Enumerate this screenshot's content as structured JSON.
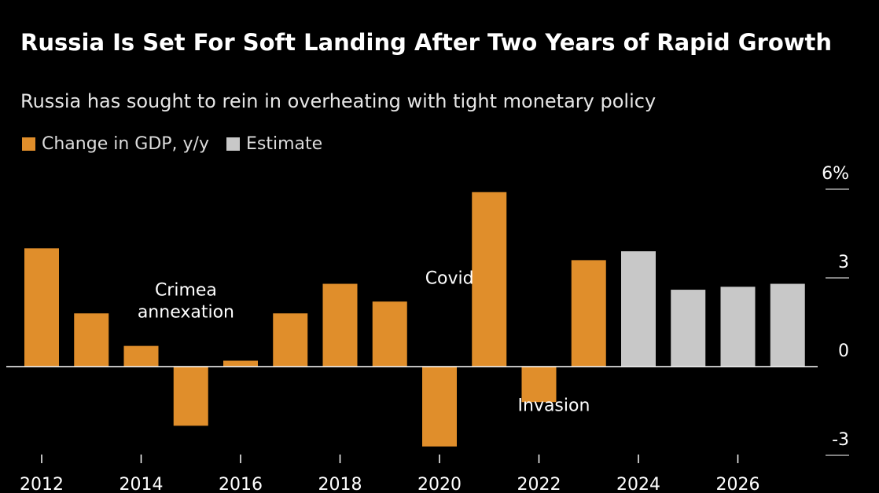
{
  "title": "Russia Is Set For Soft Landing After Two Years of Rapid Growth",
  "subtitle": "Russia has sought to rein in overheating with tight monetary policy",
  "colors": {
    "actual": "#e08e2b",
    "estimate": "#c8c8c8",
    "background": "#000000",
    "text": "#ffffff"
  },
  "legend": [
    {
      "label": "Change in GDP, y/y",
      "color": "#e08e2b"
    },
    {
      "label": "Estimate",
      "color": "#c8c8c8"
    }
  ],
  "chart_data": {
    "type": "bar",
    "title": "Russia Is Set For Soft Landing After Two Years of Rapid Growth",
    "subtitle": "Russia has sought to rein in overheating with tight monetary policy",
    "categories": [
      2012,
      2013,
      2014,
      2015,
      2016,
      2017,
      2018,
      2019,
      2020,
      2021,
      2022,
      2023,
      2024,
      2025,
      2026,
      2027
    ],
    "series": [
      {
        "name": "Change in GDP, y/y",
        "values": [
          4.0,
          1.8,
          0.7,
          -2.0,
          0.2,
          1.8,
          2.8,
          2.2,
          -2.7,
          5.9,
          -1.2,
          3.6,
          null,
          null,
          null,
          null
        ]
      },
      {
        "name": "Estimate",
        "values": [
          null,
          null,
          null,
          null,
          null,
          null,
          null,
          null,
          null,
          null,
          null,
          null,
          3.9,
          2.6,
          2.7,
          2.8
        ]
      }
    ],
    "ylim": [
      -3,
      6
    ],
    "yticks": [
      6,
      3,
      0,
      -3
    ],
    "ytick_labels": [
      "6%",
      "3",
      "0",
      "-3"
    ],
    "xticks": [
      2012,
      2014,
      2016,
      2018,
      2020,
      2022,
      2024,
      2026
    ],
    "xtick_labels": [
      "2012",
      "2014",
      "2016",
      "2018",
      "2020",
      "2022",
      "2024",
      "2026"
    ],
    "annotations": [
      {
        "lines": [
          "Crimea",
          "annexation"
        ],
        "x": 2014.9,
        "y": 2.4
      },
      {
        "lines": [
          "Covid"
        ],
        "x": 2020.2,
        "y": 2.8
      },
      {
        "lines": [
          "Invasion"
        ],
        "x": 2022.3,
        "y": -1.5
      }
    ],
    "grid": false,
    "legend_position": "top-left"
  }
}
